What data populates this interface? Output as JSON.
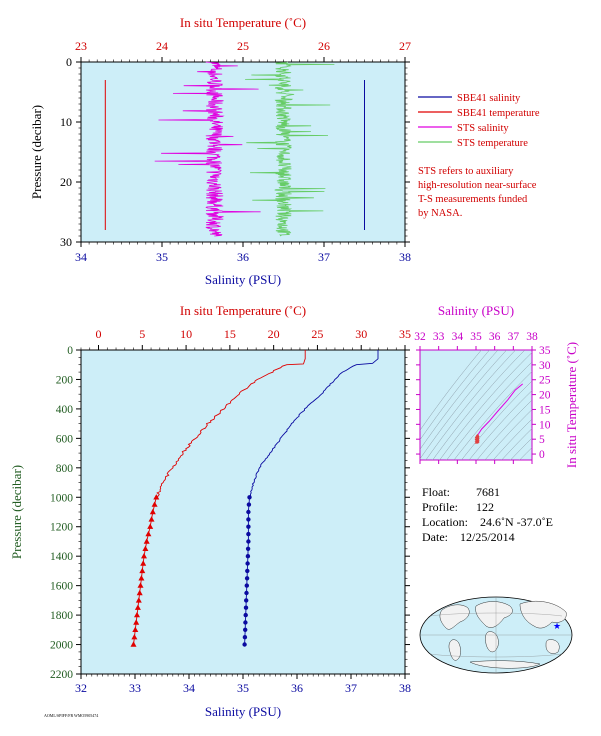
{
  "colors": {
    "plot_bg": "#cdeef8",
    "salinity": "#0a0aa0",
    "temperature": "#e00000",
    "sts_salinity": "#e000e0",
    "sts_temperature": "#66cc66",
    "pressure_axis": "#215c21",
    "ts_axis": "#c800c8"
  },
  "chart_data": [
    {
      "id": "near-surface",
      "type": "line",
      "top_axis_label": "In situ Temperature (˚C)",
      "bottom_axis_label": "Salinity (PSU)",
      "y_axis_label": "Pressure (decibar)",
      "temperature_ticks": [
        "23",
        "24",
        "25",
        "26",
        "27"
      ],
      "temperature_range": [
        23,
        27
      ],
      "salinity_ticks": [
        "34",
        "35",
        "36",
        "37",
        "38"
      ],
      "salinity_range": [
        34,
        38
      ],
      "pressure_ticks": [
        "0",
        "10",
        "20",
        "30"
      ],
      "pressure_range": [
        0,
        30
      ],
      "legend": [
        {
          "label": "SBE41 salinity",
          "color": "#0a0aa0"
        },
        {
          "label": "SBE41 temperature",
          "color": "#e00000"
        },
        {
          "label": "STS salinity",
          "color": "#e000e0"
        },
        {
          "label": "STS temperature",
          "color": "#66cc66"
        }
      ],
      "note_lines": [
        "STS refers to auxiliary",
        "high-resolution near-surface",
        "T-S measurements funded",
        "by NASA."
      ],
      "series": [
        {
          "name": "SBE41 salinity",
          "axis": "salinity",
          "pressure": [
            3,
            28
          ],
          "values": [
            37.5,
            37.5
          ]
        },
        {
          "name": "SBE41 temperature",
          "axis": "temperature",
          "pressure": [
            3,
            28
          ],
          "values": [
            23.3,
            23.3
          ]
        },
        {
          "name": "STS salinity",
          "axis": "salinity",
          "pressure_range": [
            0,
            29
          ],
          "center": 35.65
        },
        {
          "name": "STS temperature",
          "axis": "temperature",
          "pressure_range": [
            0,
            29
          ],
          "center": 25.5
        }
      ]
    },
    {
      "id": "full-profile",
      "type": "line",
      "top_axis_label": "In situ Temperature (˚C)",
      "bottom_axis_label": "Salinity (PSU)",
      "y_axis_label": "Pressure (decibar)",
      "temperature_ticks": [
        "0",
        "5",
        "10",
        "15",
        "20",
        "25",
        "30",
        "35"
      ],
      "temperature_range": [
        -2,
        35
      ],
      "salinity_ticks": [
        "32",
        "33",
        "34",
        "35",
        "36",
        "37",
        "38"
      ],
      "salinity_range": [
        32,
        38
      ],
      "pressure_ticks": [
        "0",
        "200",
        "400",
        "600",
        "800",
        "1000",
        "1200",
        "1400",
        "1600",
        "1800",
        "2000",
        "2200"
      ],
      "pressure_range": [
        0,
        2200
      ],
      "series": [
        {
          "name": "Temperature",
          "axis": "temperature",
          "pressure": [
            0,
            5,
            60,
            95,
            100,
            150,
            200,
            300,
            400,
            500,
            600,
            700,
            800,
            900,
            950,
            1000,
            1100,
            1200,
            1300,
            1400,
            1500,
            1600,
            1700,
            1800,
            1900,
            2000
          ],
          "values": [
            23.6,
            23.6,
            23.6,
            23.4,
            21.5,
            19.8,
            18.2,
            16.0,
            14.3,
            12.5,
            11.0,
            9.6,
            8.4,
            7.4,
            7.0,
            6.6,
            6.2,
            5.9,
            5.5,
            5.2,
            5.0,
            4.8,
            4.6,
            4.4,
            4.2,
            4.0
          ],
          "marker_from_pressure": 1000
        },
        {
          "name": "Salinity",
          "axis": "salinity",
          "pressure": [
            0,
            5,
            60,
            90,
            100,
            150,
            200,
            300,
            400,
            500,
            600,
            700,
            800,
            900,
            950,
            1000,
            1100,
            1200,
            1300,
            1400,
            1500,
            1600,
            1700,
            1800,
            1900,
            2000
          ],
          "values": [
            37.5,
            37.5,
            37.5,
            37.4,
            37.1,
            36.85,
            36.7,
            36.45,
            36.15,
            35.9,
            35.7,
            35.5,
            35.3,
            35.2,
            35.15,
            35.12,
            35.1,
            35.1,
            35.1,
            35.09,
            35.08,
            35.07,
            35.06,
            35.05,
            35.04,
            35.03
          ],
          "marker_from_pressure": 1000
        }
      ]
    },
    {
      "id": "ts-diagram",
      "type": "scatter",
      "top_axis_label": "Salinity (PSU)",
      "right_axis_label": "In situ Temperature (˚C)",
      "salinity_ticks": [
        "32",
        "33",
        "34",
        "35",
        "36",
        "37",
        "38"
      ],
      "salinity_range": [
        32,
        38
      ],
      "temperature_ticks": [
        "0",
        "5",
        "10",
        "15",
        "20",
        "25",
        "30",
        "35"
      ],
      "temperature_range": [
        -2,
        35
      ],
      "series": [
        {
          "name": "T-S",
          "salinity": [
            35.03,
            35.05,
            35.08,
            35.1,
            35.12,
            35.3,
            35.7,
            36.15,
            36.7,
            37.1,
            37.5
          ],
          "temperature": [
            4.0,
            4.4,
            5.0,
            5.9,
            6.6,
            8.4,
            11.0,
            14.3,
            18.2,
            21.5,
            23.6
          ]
        }
      ]
    }
  ],
  "info": {
    "float_label": "Float:",
    "float_value": "7681",
    "profile_label": "Profile:",
    "profile_value": "122",
    "location_label": "Location:",
    "location_value": "24.6˚N  -37.0˚E",
    "date_label": "Date:",
    "date_value": "12/25/2014"
  },
  "footer_code": "AOML/SPIFF/FR  WMO5905474"
}
